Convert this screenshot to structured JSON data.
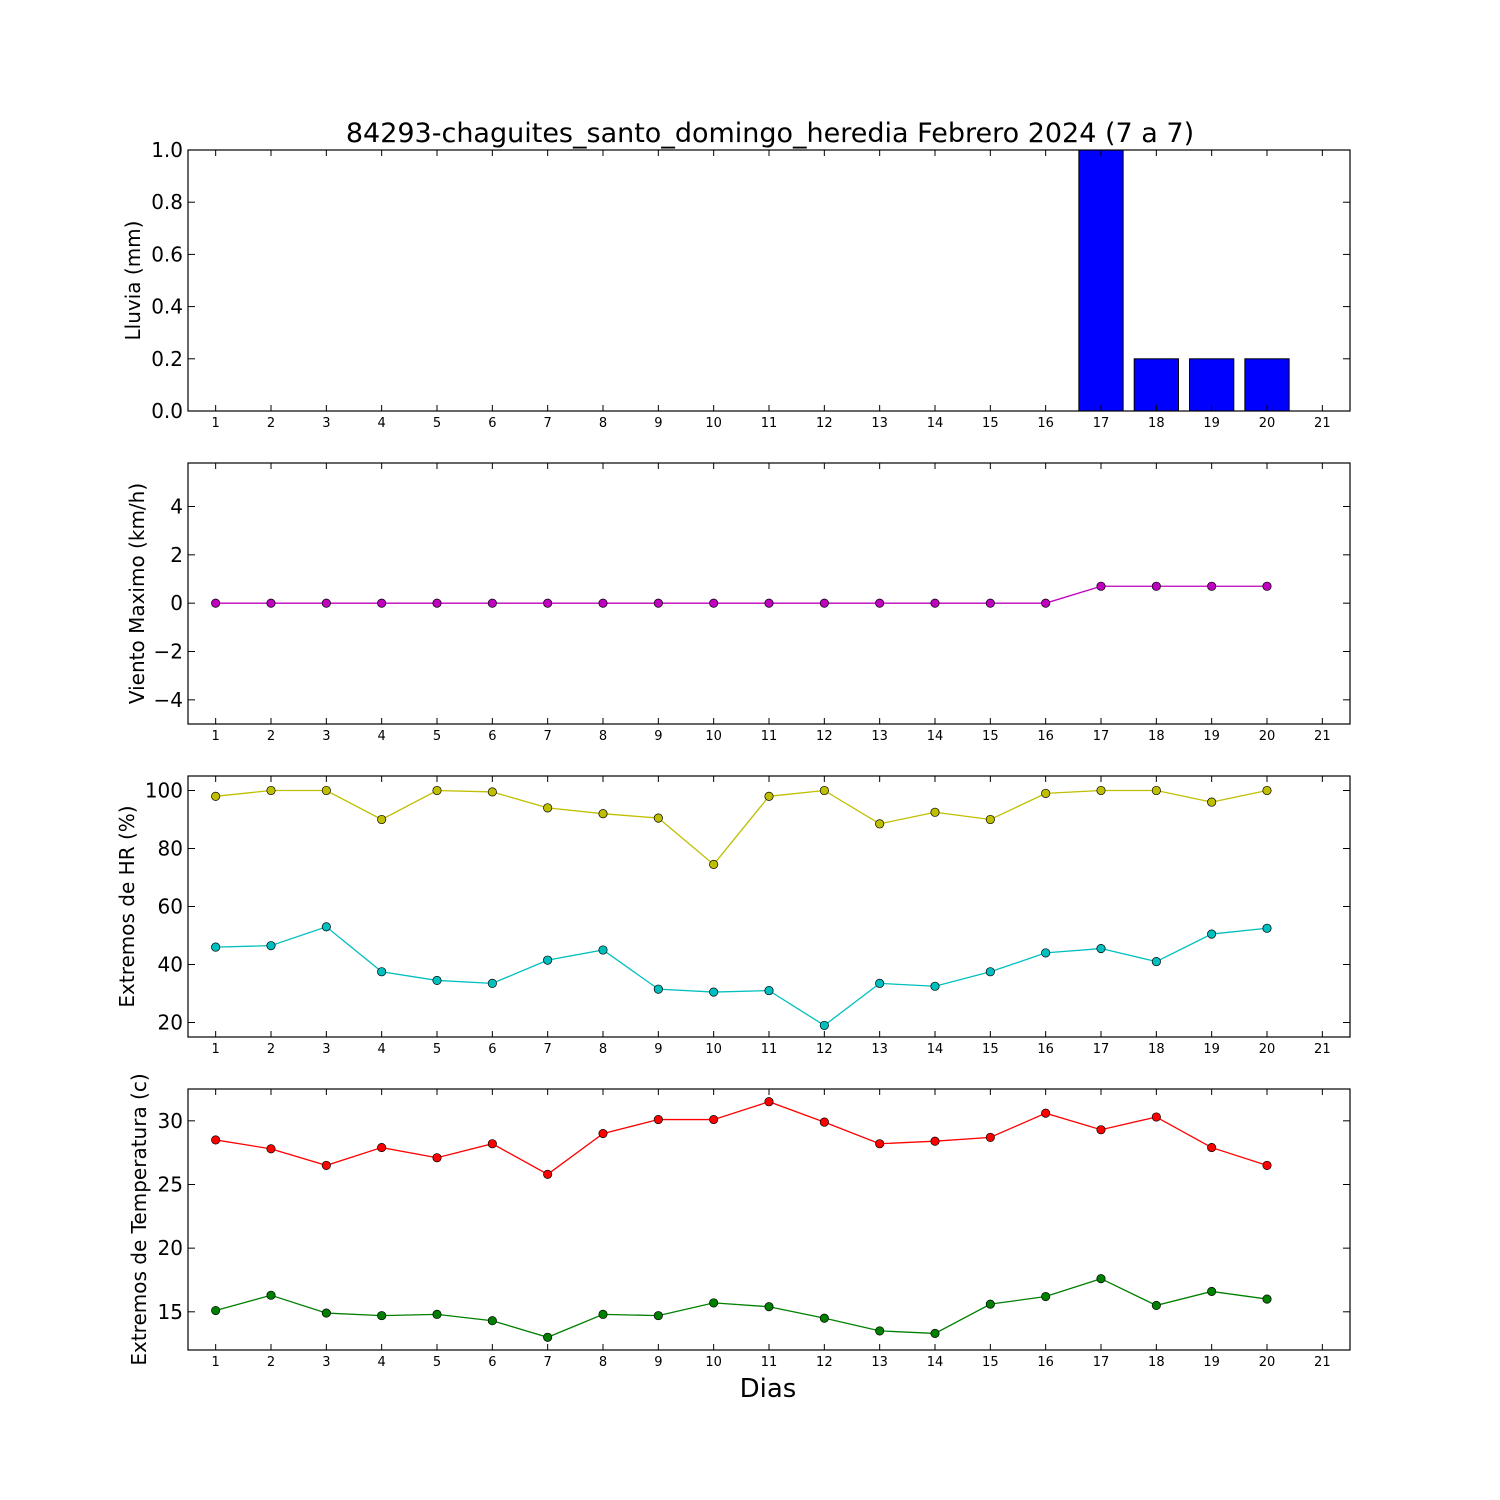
{
  "title": "84293-chaguites_santo_domingo_heredia Febrero 2024  (7 a 7)",
  "xlabel": "Dias",
  "chart_data": [
    {
      "type": "bar",
      "ylabel": "Lluvia (mm)",
      "xlim": [
        0.5,
        21.5
      ],
      "ylim": [
        0,
        1.0
      ],
      "yticks": [
        0.0,
        0.2,
        0.4,
        0.6,
        0.8,
        1.0
      ],
      "ytick_labels": [
        "0.0",
        "0.2",
        "0.4",
        "0.6",
        "0.8",
        "1.0"
      ],
      "xticks": [
        1,
        2,
        3,
        4,
        5,
        6,
        7,
        8,
        9,
        10,
        11,
        12,
        13,
        14,
        15,
        16,
        17,
        18,
        19,
        20,
        21
      ],
      "series": [
        {
          "color": "#0000ff",
          "x": [
            1,
            2,
            3,
            4,
            5,
            6,
            7,
            8,
            9,
            10,
            11,
            12,
            13,
            14,
            15,
            16,
            17,
            18,
            19,
            20
          ],
          "y": [
            0,
            0,
            0,
            0,
            0,
            0,
            0,
            0,
            0,
            0,
            0,
            0,
            0,
            0,
            0,
            0,
            1.0,
            0.2,
            0.2,
            0.2
          ]
        }
      ]
    },
    {
      "type": "line",
      "ylabel": "Viento Maximo (km/h)",
      "xlim": [
        0.5,
        21.5
      ],
      "ylim": [
        -5,
        5.8
      ],
      "yticks": [
        -4,
        -2,
        0,
        2,
        4
      ],
      "ytick_labels": [
        "−4",
        "−2",
        "0",
        "2",
        "4"
      ],
      "xticks": [
        1,
        2,
        3,
        4,
        5,
        6,
        7,
        8,
        9,
        10,
        11,
        12,
        13,
        14,
        15,
        16,
        17,
        18,
        19,
        20,
        21
      ],
      "series": [
        {
          "color": "#bf00bf",
          "x": [
            1,
            2,
            3,
            4,
            5,
            6,
            7,
            8,
            9,
            10,
            11,
            12,
            13,
            14,
            15,
            16,
            17,
            18,
            19,
            20
          ],
          "y": [
            0,
            0,
            0,
            0,
            0,
            0,
            0,
            0,
            0,
            0,
            0,
            0,
            0,
            0,
            0,
            0,
            0.7,
            0.7,
            0.7,
            0.7
          ]
        }
      ]
    },
    {
      "type": "line",
      "ylabel": "Extremos de HR (%)",
      "xlim": [
        0.5,
        21.5
      ],
      "ylim": [
        15,
        105
      ],
      "yticks": [
        20,
        40,
        60,
        80,
        100
      ],
      "ytick_labels": [
        "20",
        "40",
        "60",
        "80",
        "100"
      ],
      "xticks": [
        1,
        2,
        3,
        4,
        5,
        6,
        7,
        8,
        9,
        10,
        11,
        12,
        13,
        14,
        15,
        16,
        17,
        18,
        19,
        20,
        21
      ],
      "series": [
        {
          "color": "#bfbf00",
          "x": [
            1,
            2,
            3,
            4,
            5,
            6,
            7,
            8,
            9,
            10,
            11,
            12,
            13,
            14,
            15,
            16,
            17,
            18,
            19,
            20
          ],
          "y": [
            98,
            100,
            100,
            90,
            100,
            99.5,
            94,
            92,
            90.5,
            74.5,
            98,
            100,
            88.5,
            92.5,
            90,
            99,
            100,
            100,
            96,
            100
          ]
        },
        {
          "color": "#00bfbf",
          "x": [
            1,
            2,
            3,
            4,
            5,
            6,
            7,
            8,
            9,
            10,
            11,
            12,
            13,
            14,
            15,
            16,
            17,
            18,
            19,
            20
          ],
          "y": [
            46,
            46.5,
            53,
            37.5,
            34.5,
            33.5,
            41.5,
            45,
            31.5,
            30.5,
            31,
            19,
            33.5,
            32.5,
            37.5,
            44,
            45.5,
            41,
            50.5,
            52.5
          ]
        }
      ]
    },
    {
      "type": "line",
      "ylabel": "Extremos de Temperatura (c)",
      "xlim": [
        0.5,
        21.5
      ],
      "ylim": [
        12,
        32.5
      ],
      "yticks": [
        15,
        20,
        25,
        30
      ],
      "ytick_labels": [
        "15",
        "20",
        "25",
        "30"
      ],
      "xticks": [
        1,
        2,
        3,
        4,
        5,
        6,
        7,
        8,
        9,
        10,
        11,
        12,
        13,
        14,
        15,
        16,
        17,
        18,
        19,
        20,
        21
      ],
      "series": [
        {
          "color": "#ff0000",
          "x": [
            1,
            2,
            3,
            4,
            5,
            6,
            7,
            8,
            9,
            10,
            11,
            12,
            13,
            14,
            15,
            16,
            17,
            18,
            19,
            20
          ],
          "y": [
            28.5,
            27.8,
            26.5,
            27.9,
            27.1,
            28.2,
            25.8,
            29,
            30.1,
            30.1,
            31.5,
            29.9,
            28.2,
            28.4,
            28.7,
            30.6,
            29.3,
            30.3,
            27.9,
            26.5
          ]
        },
        {
          "color": "#008000",
          "x": [
            1,
            2,
            3,
            4,
            5,
            6,
            7,
            8,
            9,
            10,
            11,
            12,
            13,
            14,
            15,
            16,
            17,
            18,
            19,
            20
          ],
          "y": [
            15.1,
            16.3,
            14.9,
            14.7,
            14.8,
            14.3,
            13,
            14.8,
            14.7,
            15.7,
            15.4,
            14.5,
            13.5,
            13.3,
            15.6,
            16.2,
            17.6,
            15.5,
            16.6,
            16
          ]
        }
      ]
    }
  ]
}
